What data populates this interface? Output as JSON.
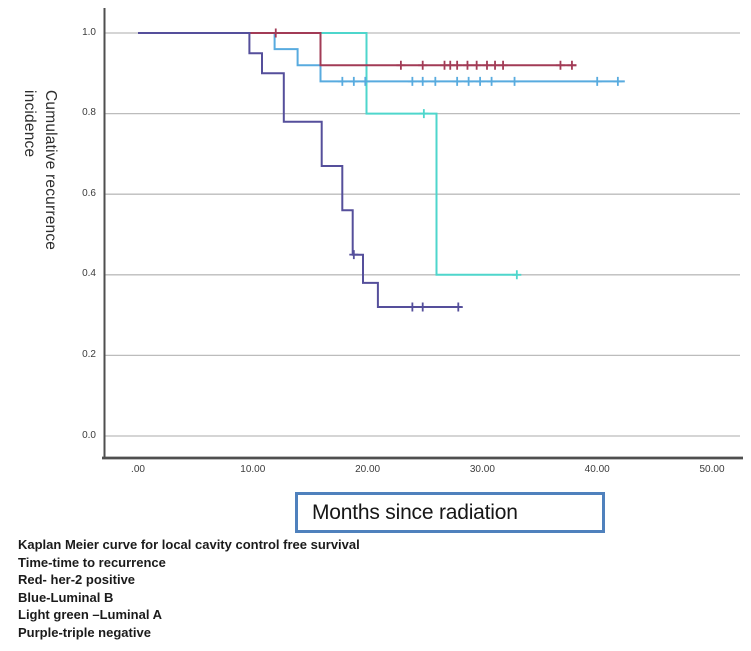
{
  "figure": {
    "y_axis_title": "Cumulative recurrence\nincidence",
    "x_axis_title": "Months since radiation"
  },
  "caption": {
    "lines": [
      "Kaplan Meier curve for local cavity control free survival",
      "Time-time to recurrence",
      "Red- her-2 positive",
      "Blue-Luminal B",
      "Light green –Luminal A",
      "Purple-triple negative"
    ]
  },
  "colors": {
    "her2_red": "#a23b56",
    "luminal_b_blue": "#58abdf",
    "luminal_a_lightgreen": "#4ed6cc",
    "triple_negative_purple": "#554f9b",
    "gridline": "#bcbcbc",
    "axis": "#4f4f4f",
    "caption_box_border": "#4f81bd"
  },
  "chart_data": {
    "type": "line",
    "subtype": "kaplan-meier-step-with-censor-marks",
    "title": "",
    "xlabel": "Months since radiation",
    "ylabel": "Cumulative recurrence incidence",
    "xlim": [
      0,
      52.5
    ],
    "ylim": [
      0.0,
      1.0
    ],
    "grid": "horizontal-only",
    "legend_position": "none (color key given in caption text below plot)",
    "x_ticks": [
      {
        "value": 0,
        "label": ".00"
      },
      {
        "value": 10,
        "label": "10.00"
      },
      {
        "value": 20,
        "label": "20.00"
      },
      {
        "value": 30,
        "label": "30.00"
      },
      {
        "value": 40,
        "label": "40.00"
      },
      {
        "value": 50,
        "label": "50.00"
      }
    ],
    "y_ticks": [
      {
        "value": 1.0,
        "label": "1.0"
      },
      {
        "value": 0.8,
        "label": "0.8"
      },
      {
        "value": 0.6,
        "label": "0.6"
      },
      {
        "value": 0.4,
        "label": "0.4"
      },
      {
        "value": 0.2,
        "label": "0.2"
      },
      {
        "value": 0.0,
        "label": "0.0"
      }
    ],
    "series": [
      {
        "name": "Luminal A",
        "caption_key": "Light green –Luminal A",
        "color": "#4ed6cc",
        "steps": [
          [
            0,
            1.0
          ],
          [
            19.9,
            1.0
          ],
          [
            19.9,
            0.8
          ],
          [
            26,
            0.8
          ],
          [
            26,
            0.4
          ],
          [
            33,
            0.4
          ]
        ],
        "censors": [
          [
            24.9,
            0.8
          ],
          [
            33,
            0.4
          ]
        ]
      },
      {
        "name": "Luminal B",
        "caption_key": "Blue-Luminal B",
        "color": "#58abdf",
        "steps": [
          [
            0,
            1.0
          ],
          [
            11.9,
            1.0
          ],
          [
            11.9,
            0.96
          ],
          [
            13.9,
            0.96
          ],
          [
            13.9,
            0.92
          ],
          [
            15.9,
            0.92
          ],
          [
            15.9,
            0.88
          ],
          [
            42.4,
            0.88
          ]
        ],
        "censors": [
          [
            17.8,
            0.88
          ],
          [
            18.8,
            0.88
          ],
          [
            19.8,
            0.88
          ],
          [
            23.9,
            0.88
          ],
          [
            24.8,
            0.88
          ],
          [
            25.9,
            0.88
          ],
          [
            27.8,
            0.88
          ],
          [
            28.8,
            0.88
          ],
          [
            29.8,
            0.88
          ],
          [
            30.8,
            0.88
          ],
          [
            32.8,
            0.88
          ],
          [
            40.0,
            0.88
          ],
          [
            41.8,
            0.88
          ]
        ]
      },
      {
        "name": "her-2 positive",
        "caption_key": "Red- her-2 positive",
        "color": "#a23b56",
        "steps": [
          [
            0,
            1.0
          ],
          [
            15.9,
            1.0
          ],
          [
            15.9,
            0.92
          ],
          [
            38.2,
            0.92
          ]
        ],
        "censors": [
          [
            12,
            1.0
          ],
          [
            22.9,
            0.92
          ],
          [
            24.8,
            0.92
          ],
          [
            26.7,
            0.92
          ],
          [
            27.2,
            0.92
          ],
          [
            27.8,
            0.92
          ],
          [
            28.7,
            0.92
          ],
          [
            29.5,
            0.92
          ],
          [
            30.4,
            0.92
          ],
          [
            31.1,
            0.92
          ],
          [
            31.8,
            0.92
          ],
          [
            36.8,
            0.92
          ],
          [
            37.8,
            0.92
          ]
        ]
      },
      {
        "name": "triple negative",
        "caption_key": "Purple-triple negative",
        "color": "#554f9b",
        "steps": [
          [
            0,
            1.0
          ],
          [
            9.7,
            1.0
          ],
          [
            9.7,
            0.95
          ],
          [
            10.8,
            0.95
          ],
          [
            10.8,
            0.9
          ],
          [
            12.7,
            0.9
          ],
          [
            12.7,
            0.78
          ],
          [
            16,
            0.78
          ],
          [
            16,
            0.67
          ],
          [
            17.8,
            0.67
          ],
          [
            17.8,
            0.56
          ],
          [
            18.7,
            0.56
          ],
          [
            18.7,
            0.45
          ],
          [
            19.6,
            0.45
          ],
          [
            19.6,
            0.38
          ],
          [
            20.9,
            0.38
          ],
          [
            20.9,
            0.32
          ],
          [
            28.2,
            0.32
          ]
        ],
        "censors": [
          [
            18.8,
            0.45
          ],
          [
            23.9,
            0.32
          ],
          [
            24.8,
            0.32
          ],
          [
            27.9,
            0.32
          ]
        ]
      }
    ]
  }
}
